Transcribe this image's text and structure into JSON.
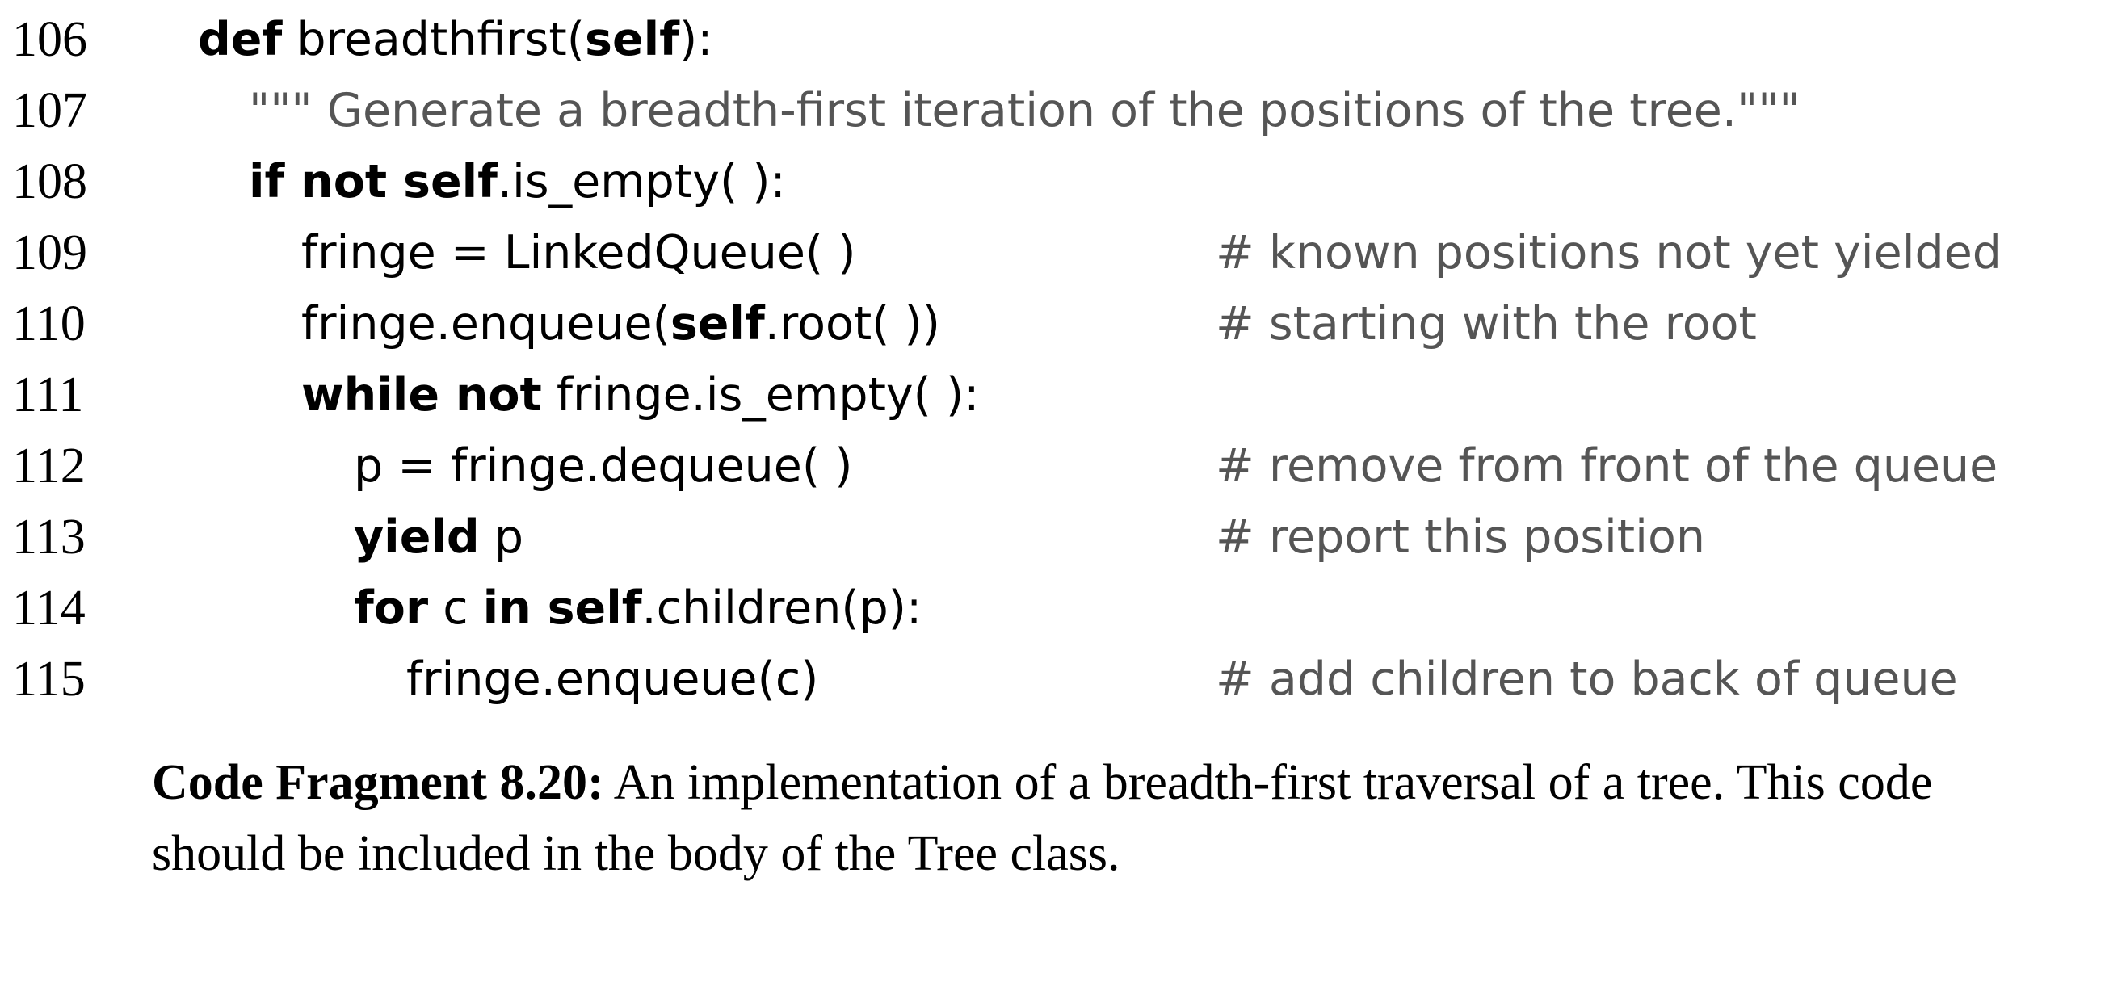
{
  "code": {
    "lines": [
      {
        "num": "106",
        "kw1": "def",
        "t1": " breadthfirst(",
        "kw2": "self",
        "t2": "):"
      },
      {
        "num": "107",
        "doc": "\"\"\" Generate a breadth-first iteration of the positions of the tree.\"\"\""
      },
      {
        "num": "108",
        "kw1": "if not self",
        "t1": ".is_empty( ):"
      },
      {
        "num": "109",
        "t1": "fringe = LinkedQueue( )",
        "comment": "# known positions not yet yielded"
      },
      {
        "num": "110",
        "t1": "fringe.enqueue(",
        "kw1": "self",
        "t2": ".root( ))",
        "comment": "# starting with the root"
      },
      {
        "num": "111",
        "kw1": "while not",
        "t1": " fringe.is_empty( ):"
      },
      {
        "num": "112",
        "t1": "p = fringe.dequeue( )",
        "comment": "# remove from front of the queue"
      },
      {
        "num": "113",
        "kw1": "yield",
        "t1": " p",
        "comment": "# report this position"
      },
      {
        "num": "114",
        "kw1": "for",
        "t1": " c ",
        "kw2": "in self",
        "t2": ".children(p):"
      },
      {
        "num": "115",
        "t1": "fringe.enqueue(c)",
        "comment": "# add children to back of queue"
      }
    ]
  },
  "caption": {
    "label": "Code Fragment 8.20:",
    "text": " An implementation of a breadth-first traversal of a tree. This code should be included in the body of the Tree class."
  }
}
